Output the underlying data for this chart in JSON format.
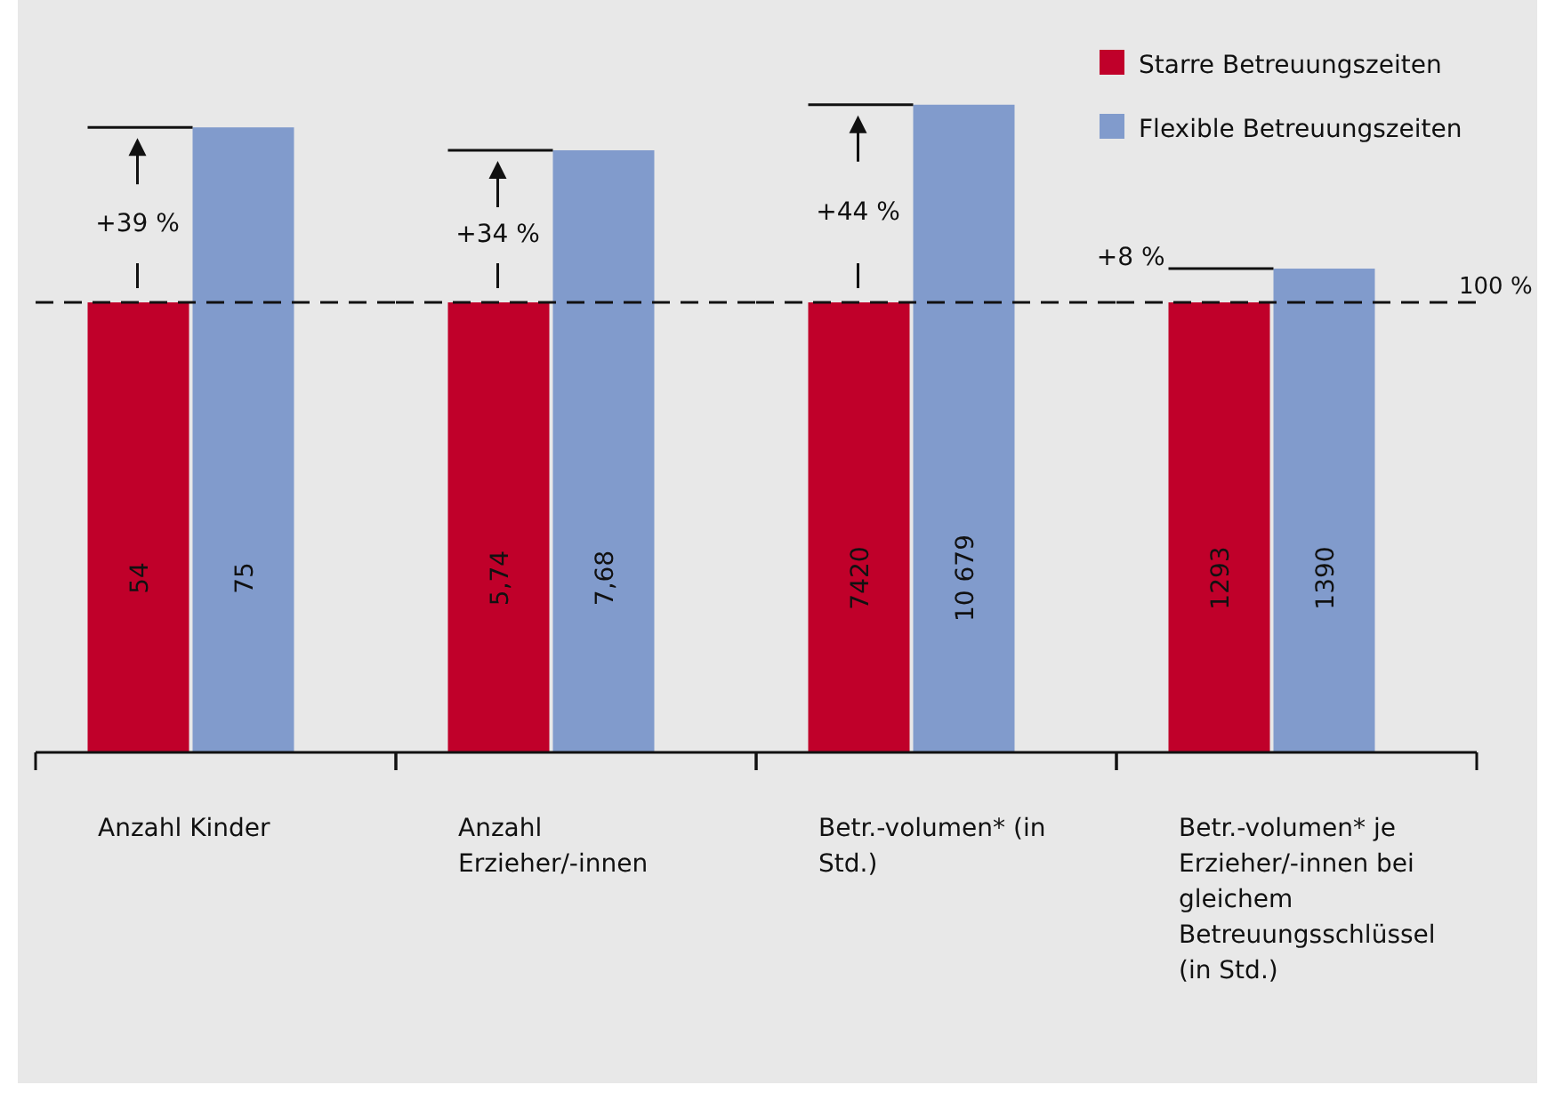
{
  "chart_data": [
    {
      "type": "bar",
      "xlabel": "Anzahl Kinder",
      "categories": [
        null
      ],
      "series": [
        {
          "color": "#c0002a",
          "values": [
            54
          ],
          "value_labels": [
            "54"
          ]
        },
        {
          "color": "#819bcc",
          "values": [
            75
          ],
          "value_labels": [
            "75"
          ]
        }
      ],
      "ref_lines": [
        {
          "axis": "y",
          "value": 54,
          "line_style": "dashed"
        }
      ],
      "annotations": [
        "+39 %"
      ]
    },
    {
      "type": "bar",
      "xlabel": "Anzahl Erzieher/-innen",
      "categories": [
        null
      ],
      "series": [
        {
          "color": "#c0002a",
          "values": [
            5.74
          ],
          "value_labels": [
            "5,74"
          ]
        },
        {
          "color": "#819bcc",
          "values": [
            7.68
          ],
          "value_labels": [
            "7,68"
          ]
        }
      ],
      "ref_lines": [
        {
          "axis": "y",
          "value": 5.74,
          "line_style": "dashed"
        }
      ],
      "annotations": [
        "+34 %"
      ]
    },
    {
      "type": "bar",
      "xlabel": "Betr.-volumen* (in Std.)",
      "categories": [
        null
      ],
      "series": [
        {
          "color": "#c0002a",
          "values": [
            7420
          ],
          "value_labels": [
            "7420"
          ]
        },
        {
          "color": "#819bcc",
          "values": [
            10679
          ],
          "value_labels": [
            "10 679"
          ]
        }
      ],
      "ref_lines": [
        {
          "axis": "y",
          "value": 7420,
          "line_style": "dashed"
        }
      ],
      "annotations": [
        "+44 %"
      ]
    },
    {
      "type": "bar",
      "xlabel": "Betr.-volumen* je Erzieher/-innen bei gleichem Betreuungsschlüssel (in Std.)",
      "categories": [
        null
      ],
      "series": [
        {
          "name": "Starre Betreuungszeiten",
          "color": "#c0002a",
          "values": [
            1293
          ],
          "value_labels": [
            "1293"
          ]
        },
        {
          "name": "Flexible Betreuungszeiten",
          "color": "#819bcc",
          "values": [
            1390
          ],
          "value_labels": [
            "1390"
          ]
        }
      ],
      "ref_lines": [
        {
          "axis": "y",
          "value": 1293,
          "line_style": "dashed"
        }
      ],
      "annotations": [
        "+8 %",
        "100 %"
      ],
      "legend": "top right"
    }
  ]
}
